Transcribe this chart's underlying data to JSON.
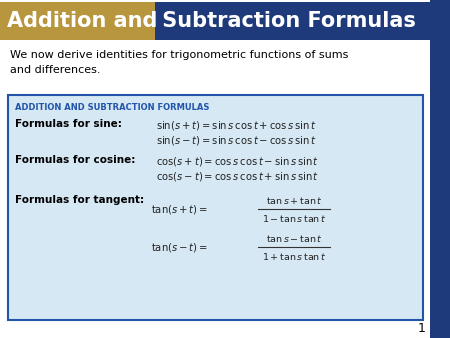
{
  "title_part1": "Addition and",
  "title_part2": " Subtraction Formulas",
  "title_bg1": "#B8963E",
  "title_bg2": "#1F3A7A",
  "title_text_color": "#FFFFFF",
  "body_bg": "#FFFFFF",
  "slide_bg": "#C8C8C8",
  "right_border_color": "#1F3A7A",
  "intro_text": "We now derive identities for trigonometric functions of sums\nand differences.",
  "box_bg": "#D6E8F4",
  "box_border": "#2255AA",
  "box_title": "ADDITION AND SUBTRACTION FORMULAS",
  "box_title_color": "#2255AA",
  "page_number": "1"
}
